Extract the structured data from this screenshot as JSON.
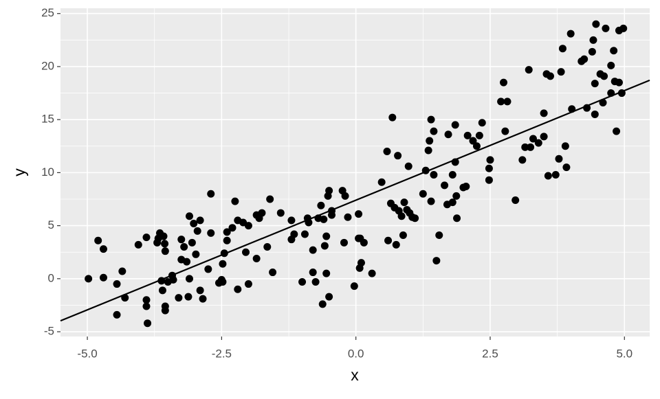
{
  "chart_data": {
    "type": "scatter",
    "x_label": "x",
    "y_label": "y",
    "xlim": [
      -5.5,
      5.47
    ],
    "ylim": [
      -5.45,
      25.5
    ],
    "xticks": [
      {
        "value": -5,
        "label": "-5.0"
      },
      -2.5,
      {
        "value": 0,
        "label": "0.0"
      },
      2.5,
      {
        "value": 5,
        "label": "5.0"
      }
    ],
    "yticks": [
      -5,
      0,
      5,
      10,
      15,
      20,
      25
    ],
    "xminorticks": [
      -3.75,
      -1.25,
      1.25,
      3.75
    ],
    "yminorticks": [
      -2.5,
      2.5,
      7.5,
      12.5,
      17.5,
      22.5
    ],
    "grid": true,
    "series": [
      {
        "color": "#000000",
        "x": [
          -4.98,
          -4.8,
          -4.7,
          -4.7,
          -4.45,
          -4.45,
          -4.35,
          -4.3,
          -4.05,
          -3.9,
          -3.9,
          -3.9,
          -3.88,
          -3.7,
          -3.68,
          -3.65,
          -3.62,
          -3.6,
          -3.58,
          -3.56,
          -3.55,
          -3.55,
          -3.55,
          -3.5,
          -3.42,
          -3.4,
          -3.3,
          -3.25,
          -3.25,
          -3.2,
          -3.15,
          -3.12,
          -3.1,
          -3.1,
          -3.05,
          -3.02,
          -2.98,
          -2.95,
          -2.9,
          -2.9,
          -2.85,
          -2.75,
          -2.7,
          -2.7,
          -2.55,
          -2.5,
          -2.48,
          -2.48,
          -2.45,
          -2.4,
          -2.4,
          -2.3,
          -2.25,
          -2.2,
          -2.2,
          -2.1,
          -2.05,
          -2.0,
          -2.0,
          -1.85,
          -1.85,
          -1.8,
          -1.75,
          -1.65,
          -1.6,
          -1.55,
          -1.4,
          -1.2,
          -1.2,
          -1.15,
          -1.0,
          -0.95,
          -0.9,
          -0.88,
          -0.8,
          -0.8,
          -0.75,
          -0.7,
          -0.65,
          -0.62,
          -0.6,
          -0.58,
          -0.55,
          -0.55,
          -0.52,
          -0.5,
          -0.5,
          -0.45,
          -0.45,
          -0.25,
          -0.2,
          -0.22,
          -0.15,
          -0.03,
          0.05,
          0.05,
          0.08,
          0.07,
          0.1,
          0.15,
          0.3,
          0.48,
          0.58,
          0.6,
          0.65,
          0.68,
          0.72,
          0.75,
          0.78,
          0.8,
          0.85,
          0.88,
          0.9,
          0.95,
          0.98,
          1.0,
          1.05,
          1.1,
          1.25,
          1.3,
          1.35,
          1.37,
          1.4,
          1.4,
          1.45,
          1.45,
          1.5,
          1.55,
          1.65,
          1.7,
          1.72,
          1.8,
          1.8,
          1.85,
          1.85,
          1.87,
          1.88,
          2.0,
          2.05,
          2.08,
          2.18,
          2.25,
          2.3,
          2.35,
          2.5,
          2.48,
          2.48,
          2.7,
          2.75,
          2.78,
          2.82,
          2.97,
          3.1,
          3.15,
          3.22,
          3.25,
          3.3,
          3.4,
          3.5,
          3.5,
          3.55,
          3.58,
          3.62,
          3.72,
          3.78,
          3.82,
          3.85,
          3.9,
          3.92,
          4.0,
          4.02,
          4.2,
          4.25,
          4.3,
          4.4,
          4.42,
          4.45,
          4.45,
          4.47,
          4.55,
          4.6,
          4.62,
          4.65,
          4.75,
          4.75,
          4.8,
          4.82,
          4.85,
          4.9,
          4.9,
          4.95,
          4.98
        ],
        "values": [
          0.0,
          3.6,
          2.8,
          0.1,
          -0.5,
          -3.4,
          0.7,
          -1.8,
          3.2,
          3.9,
          -2.0,
          -2.6,
          -4.2,
          3.4,
          3.8,
          4.3,
          -0.2,
          -1.1,
          4.0,
          3.3,
          2.6,
          -2.6,
          -3.0,
          -0.3,
          0.3,
          -0.1,
          -1.8,
          3.7,
          1.8,
          3.0,
          1.6,
          -1.7,
          0.0,
          5.9,
          3.4,
          5.2,
          2.3,
          4.5,
          5.5,
          -1.1,
          -1.9,
          0.9,
          8.0,
          4.3,
          -0.4,
          -0.1,
          -0.3,
          1.4,
          2.4,
          4.4,
          3.6,
          4.8,
          7.3,
          5.5,
          -1.0,
          5.3,
          2.5,
          5.0,
          -0.5,
          1.9,
          6.0,
          5.7,
          6.2,
          3.0,
          7.5,
          0.6,
          6.2,
          5.5,
          3.7,
          4.2,
          -0.3,
          4.2,
          5.7,
          5.3,
          2.7,
          0.6,
          -0.3,
          5.7,
          6.9,
          -2.4,
          5.6,
          3.1,
          0.5,
          4.0,
          7.8,
          8.3,
          -1.7,
          6.0,
          6.4,
          8.3,
          7.8,
          3.4,
          5.8,
          -0.7,
          6.1,
          3.8,
          3.8,
          1.0,
          1.5,
          3.4,
          0.5,
          9.1,
          12.0,
          3.6,
          7.1,
          15.2,
          6.7,
          3.2,
          11.6,
          6.4,
          5.9,
          4.1,
          7.2,
          6.5,
          10.6,
          6.2,
          5.8,
          5.7,
          8.0,
          10.2,
          12.1,
          13.0,
          15.0,
          7.3,
          13.9,
          9.8,
          1.7,
          4.1,
          8.8,
          7.0,
          13.6,
          7.2,
          9.8,
          14.5,
          11.0,
          7.8,
          5.7,
          8.6,
          8.7,
          13.5,
          13.0,
          12.5,
          13.5,
          14.7,
          11.2,
          10.4,
          9.3,
          16.7,
          18.5,
          13.9,
          16.7,
          7.4,
          11.2,
          12.4,
          19.7,
          12.4,
          13.2,
          12.8,
          13.4,
          15.6,
          19.3,
          9.7,
          19.1,
          9.8,
          11.3,
          19.5,
          21.7,
          12.5,
          10.5,
          23.1,
          16.0,
          20.5,
          20.7,
          16.1,
          21.4,
          22.5,
          18.4,
          15.5,
          24.0,
          19.3,
          16.6,
          19.1,
          23.6,
          17.5,
          20.1,
          21.5,
          18.6,
          13.9,
          18.5,
          23.4,
          17.5,
          23.6
        ]
      }
    ],
    "fit_line": {
      "color": "#000000",
      "x": [
        -5.5,
        5.47
      ],
      "values": [
        -3.97,
        18.71
      ]
    }
  }
}
